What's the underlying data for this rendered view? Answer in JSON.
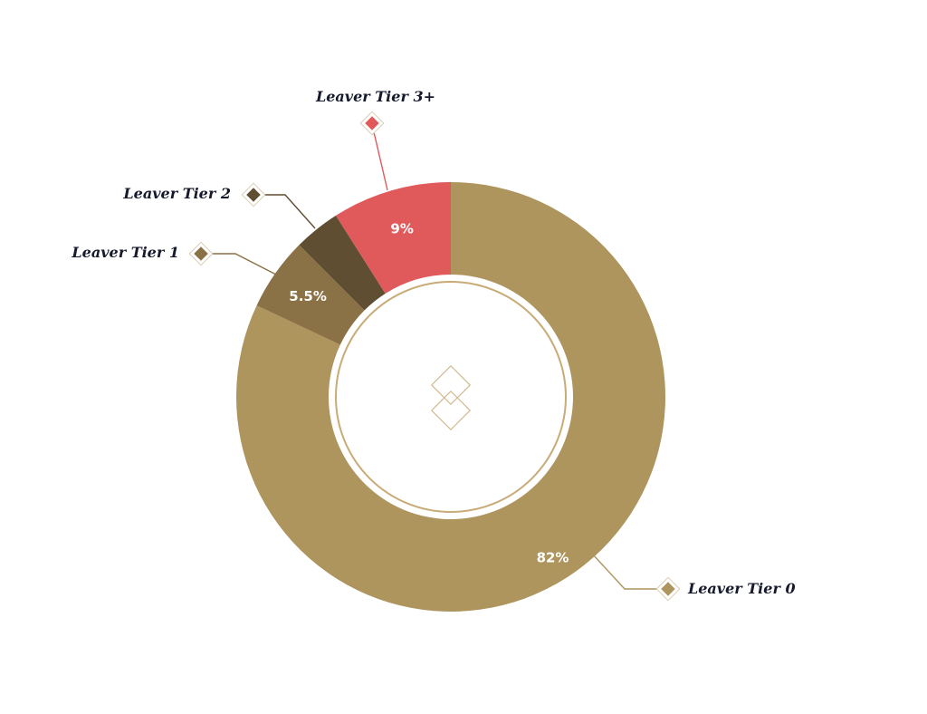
{
  "chart_data": {
    "type": "pie",
    "style": "donut",
    "categories": [
      "Leaver Tier 0",
      "Leaver Tier 1",
      "Leaver Tier 2",
      "Leaver Tier 3+"
    ],
    "values": [
      82,
      5.5,
      3.5,
      9
    ],
    "value_labels": [
      "82%",
      "5.5%",
      "",
      "9%"
    ],
    "colors": [
      "#ae945d",
      "#8a7146",
      "#5f4e31",
      "#e05a5c"
    ],
    "legend_placement": "callouts around the ring"
  }
}
